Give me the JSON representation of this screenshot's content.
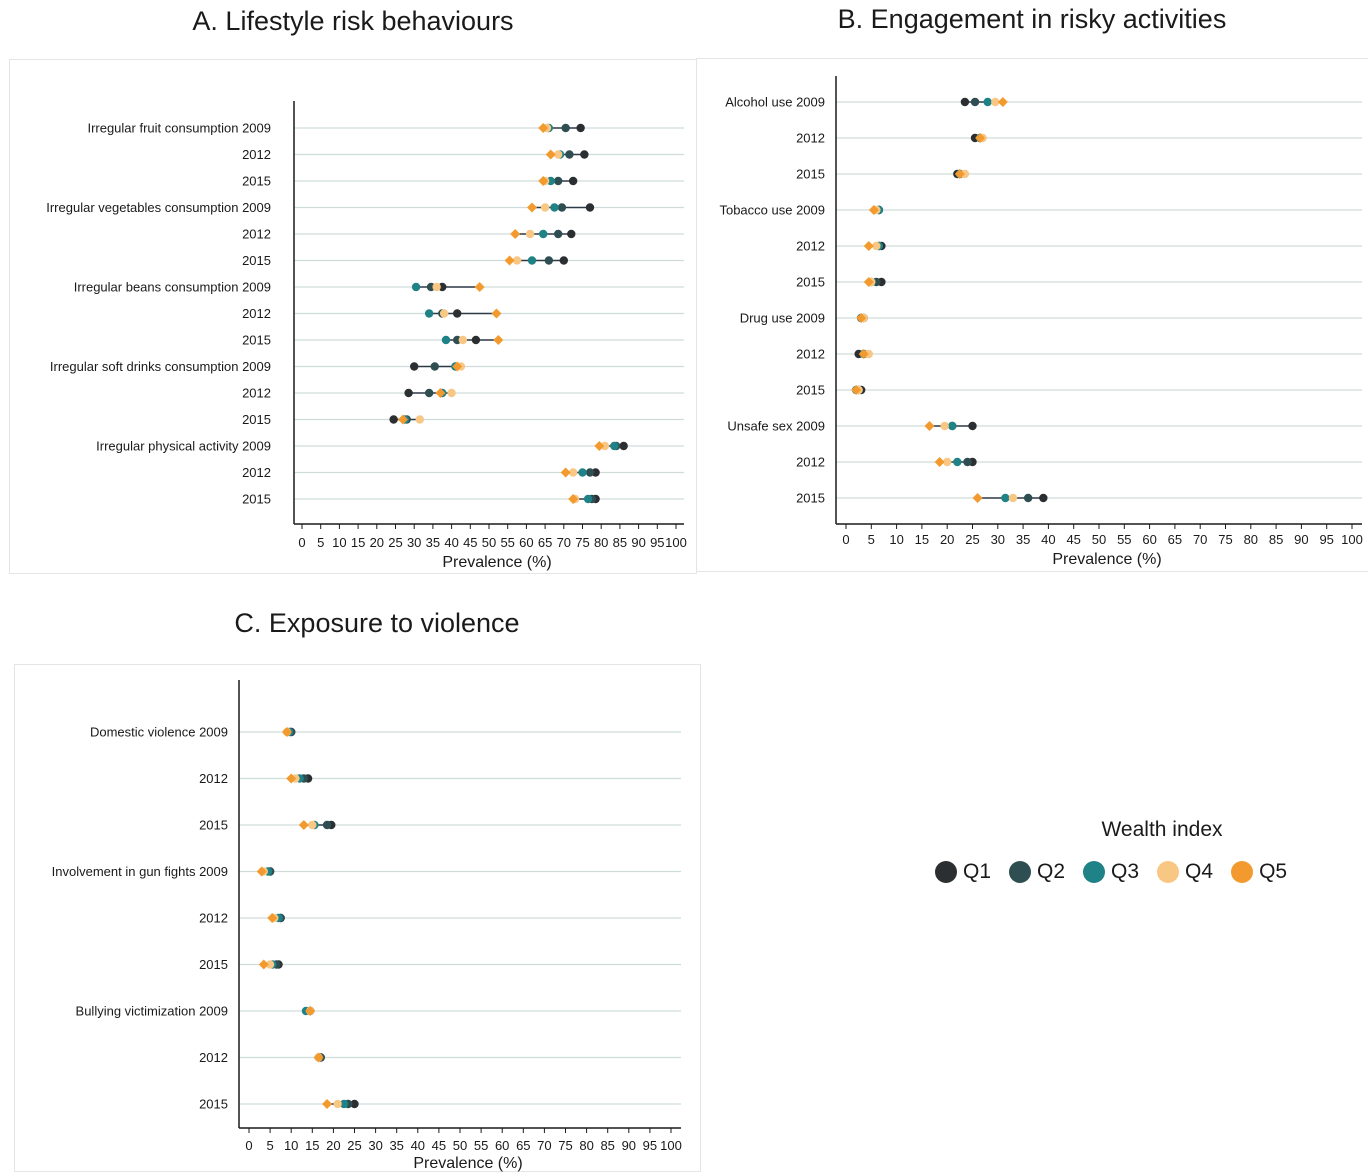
{
  "legend": {
    "title": "Wealth index",
    "items": [
      {
        "label": "Q1",
        "color": "#2b2f31"
      },
      {
        "label": "Q2",
        "color": "#2e4e52"
      },
      {
        "label": "Q3",
        "color": "#1f8286"
      },
      {
        "label": "Q4",
        "color": "#f9c784"
      },
      {
        "label": "Q5",
        "color": "#f39a2f"
      }
    ]
  },
  "colors": {
    "Q1": "#2b2f31",
    "Q2": "#2e4e52",
    "Q3": "#1f8286",
    "Q4": "#f9c784",
    "Q5": "#f39a2f",
    "connector": "#2f3a48",
    "gridline": "#cfdcdc"
  },
  "chart_data": [
    {
      "type": "scatter",
      "title": "A. Lifestyle risk behaviours",
      "xlabel": "Prevalence (%)",
      "xlim": [
        0,
        100
      ],
      "xticks": [
        0,
        5,
        10,
        15,
        20,
        25,
        30,
        35,
        40,
        45,
        50,
        55,
        60,
        65,
        70,
        75,
        80,
        85,
        90,
        95,
        100
      ],
      "series_names": [
        "Q1",
        "Q2",
        "Q3",
        "Q4",
        "Q5"
      ],
      "rows": [
        {
          "label": "Irregular fruit consumption 2009",
          "values": [
            74.5,
            70.5,
            66,
            65.5,
            64.5
          ]
        },
        {
          "label": "2012",
          "values": [
            75.5,
            71.5,
            69,
            68.5,
            66.5
          ]
        },
        {
          "label": "2015",
          "values": [
            72.5,
            68.5,
            66.5,
            65,
            64.5
          ]
        },
        {
          "label": "Irregular vegetables consumption 2009",
          "values": [
            77,
            69.5,
            67.5,
            65,
            61.5
          ]
        },
        {
          "label": "2012",
          "values": [
            72,
            68.5,
            64.5,
            61,
            57
          ]
        },
        {
          "label": "2015",
          "values": [
            70,
            66,
            61.5,
            57.5,
            55.5
          ]
        },
        {
          "label": "Irregular beans consumption 2009",
          "values": [
            37.5,
            34.5,
            30.5,
            36,
            47.5
          ]
        },
        {
          "label": "2012",
          "values": [
            41.5,
            37.5,
            34,
            38,
            52
          ]
        },
        {
          "label": "2015",
          "values": [
            46.5,
            41.5,
            38.5,
            43,
            52.5
          ]
        },
        {
          "label": "Irregular soft drinks consumption 2009",
          "values": [
            30,
            35.5,
            41,
            42.5,
            41.5
          ]
        },
        {
          "label": "2012",
          "values": [
            28.5,
            34,
            37.5,
            40,
            37
          ]
        },
        {
          "label": "2015",
          "values": [
            24.5,
            28,
            27.5,
            31.5,
            27
          ]
        },
        {
          "label": "Irregular physical activity 2009",
          "values": [
            86,
            84,
            83.5,
            81,
            79.5
          ]
        },
        {
          "label": "2012",
          "values": [
            78.5,
            77,
            75,
            72.5,
            70.5
          ]
        },
        {
          "label": "2015",
          "values": [
            78.5,
            77.5,
            76.5,
            73,
            72.5
          ]
        }
      ]
    },
    {
      "type": "scatter",
      "title": "B. Engagement in risky activities",
      "xlabel": "Prevalence (%)",
      "xlim": [
        0,
        100
      ],
      "xticks": [
        0,
        5,
        10,
        15,
        20,
        25,
        30,
        35,
        40,
        45,
        50,
        55,
        60,
        65,
        70,
        75,
        80,
        85,
        90,
        95,
        100
      ],
      "series_names": [
        "Q1",
        "Q2",
        "Q3",
        "Q4",
        "Q5"
      ],
      "rows": [
        {
          "label": "Alcohol use 2009",
          "values": [
            23.5,
            25.5,
            28,
            29.5,
            31
          ]
        },
        {
          "label": "2012",
          "values": [
            25.5,
            26.5,
            26.5,
            27,
            26.5
          ]
        },
        {
          "label": "2015",
          "values": [
            22,
            22.5,
            22.5,
            23.5,
            22.5
          ]
        },
        {
          "label": "Tobacco use 2009",
          "values": [
            6.5,
            6.5,
            6.5,
            6,
            5.5
          ]
        },
        {
          "label": "2012",
          "values": [
            7,
            6.5,
            6.5,
            6,
            4.5
          ]
        },
        {
          "label": "2015",
          "values": [
            7,
            6,
            5,
            5,
            4.5
          ]
        },
        {
          "label": "Drug use 2009",
          "values": [
            3.5,
            3,
            3,
            3.5,
            3
          ]
        },
        {
          "label": "2012",
          "values": [
            2.5,
            3.5,
            3.5,
            4.5,
            3.5
          ]
        },
        {
          "label": "2015",
          "values": [
            3,
            2.5,
            2,
            2.5,
            2
          ]
        },
        {
          "label": "Unsafe sex 2009",
          "values": [
            25,
            21,
            21,
            19.5,
            16.5
          ]
        },
        {
          "label": "2012",
          "values": [
            25,
            24,
            22,
            20,
            18.5
          ]
        },
        {
          "label": "2015",
          "values": [
            39,
            36,
            31.5,
            33,
            26
          ]
        }
      ]
    },
    {
      "type": "scatter",
      "title": "C. Exposure to violence",
      "xlabel": "Prevalence (%)",
      "xlim": [
        0,
        100
      ],
      "xticks": [
        0,
        5,
        10,
        15,
        20,
        25,
        30,
        35,
        40,
        45,
        50,
        55,
        60,
        65,
        70,
        75,
        80,
        85,
        90,
        95,
        100
      ],
      "series_names": [
        "Q1",
        "Q2",
        "Q3",
        "Q4",
        "Q5"
      ],
      "rows": [
        {
          "label": "Domestic violence 2009",
          "values": [
            10,
            10,
            9.5,
            9,
            9
          ]
        },
        {
          "label": "2012",
          "values": [
            14,
            13,
            12,
            11,
            10
          ]
        },
        {
          "label": "2015",
          "values": [
            19.5,
            18.5,
            15.5,
            15,
            13
          ]
        },
        {
          "label": "Involvement in gun fights 2009",
          "values": [
            5,
            5,
            4.5,
            3.5,
            3
          ]
        },
        {
          "label": "2012",
          "values": [
            7.5,
            7.5,
            7,
            6,
            5.5
          ]
        },
        {
          "label": "2015",
          "values": [
            7,
            6.5,
            5.5,
            5,
            3.5
          ]
        },
        {
          "label": "Bullying victimization 2009",
          "values": [
            14.5,
            14.5,
            13.5,
            14.5,
            14.5
          ]
        },
        {
          "label": "2012",
          "values": [
            17,
            17,
            16.5,
            16.5,
            16.5
          ]
        },
        {
          "label": "2015",
          "values": [
            25,
            23.5,
            22.5,
            21,
            18.5
          ]
        }
      ]
    }
  ]
}
